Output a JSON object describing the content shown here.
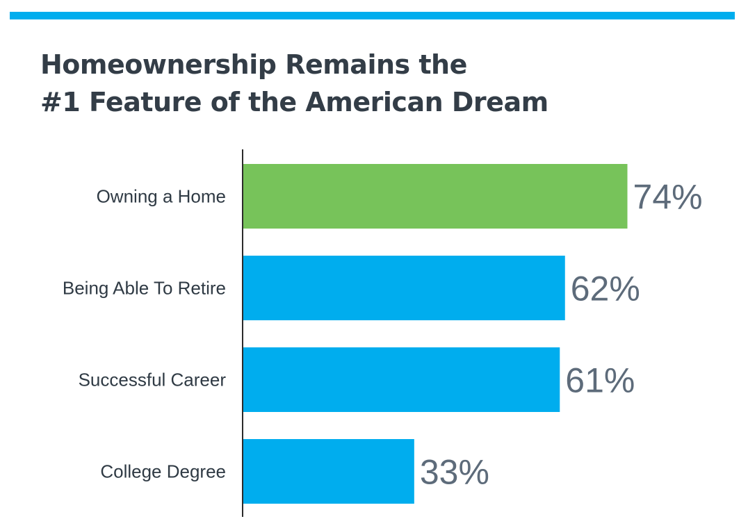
{
  "header": {
    "title_line1": "Homeownership Remains the",
    "title_line2": "#1 Feature of the American Dream"
  },
  "colors": {
    "accent_rule": "#00adee",
    "highlight": "#77c35a",
    "bar": "#00adee",
    "axis": "#2b2b2b"
  },
  "chart_data": {
    "type": "bar",
    "orientation": "horizontal",
    "title": "Homeownership Remains the #1 Feature of the American Dream",
    "categories": [
      "Owning a Home",
      "Being Able To Retire",
      "Successful Career",
      "College Degree"
    ],
    "values": [
      74,
      62,
      61,
      33
    ],
    "value_labels": [
      "74%",
      "62%",
      "61%",
      "33%"
    ],
    "highlight_index": 0,
    "xlim": [
      0,
      100
    ],
    "grid": false,
    "legend": "none"
  }
}
